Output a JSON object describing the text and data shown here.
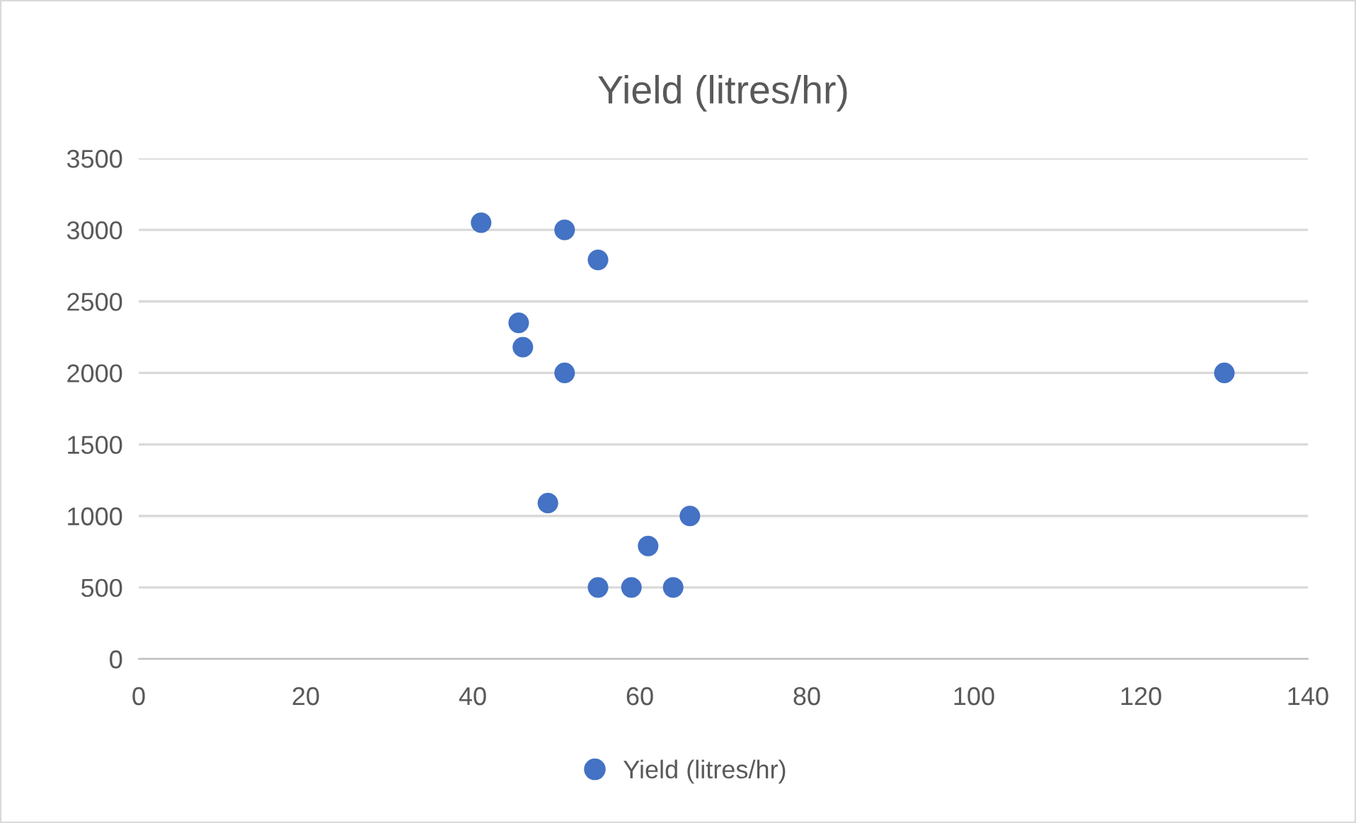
{
  "chart_data": {
    "type": "scatter",
    "title": "Yield (litres/hr)",
    "series": [
      {
        "name": "Yield (litres/hr)",
        "color": "#4472c4",
        "x": [
          41,
          51,
          55,
          45.5,
          46,
          51,
          130,
          49,
          66,
          61,
          55,
          59,
          64
        ],
        "values": [
          3050,
          3000,
          2790,
          2350,
          2180,
          2000,
          2000,
          1090,
          1000,
          790,
          500,
          500,
          500
        ]
      }
    ],
    "xlim": [
      0,
      140
    ],
    "xticks": [
      0,
      20,
      40,
      60,
      80,
      100,
      120,
      140
    ],
    "ylim": [
      0,
      3500
    ],
    "yticks": [
      0,
      500,
      1000,
      1500,
      2000,
      2500,
      3000,
      3500
    ],
    "grid": "y",
    "legend": "bottom",
    "marker": "circle"
  }
}
